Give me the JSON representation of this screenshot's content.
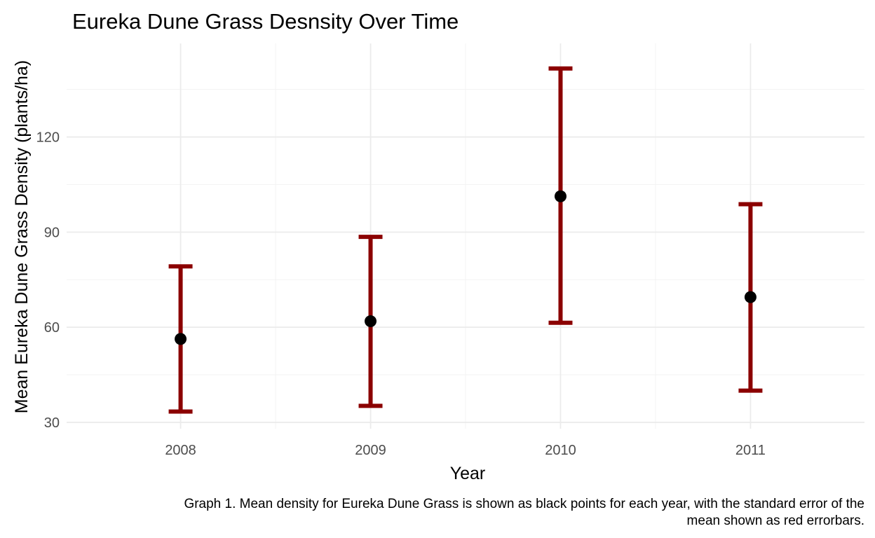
{
  "chart_data": {
    "type": "scatter",
    "title": "Eureka Dune Grass Desnsity Over Time",
    "xlabel": "Year",
    "ylabel": "Mean Eureka Dune Grass Density (plants/ha)",
    "categories": [
      "2008",
      "2009",
      "2010",
      "2011"
    ],
    "series": [
      {
        "values": [
          56.3,
          61.9,
          101.3,
          69.5
        ],
        "error_lower": [
          33.4,
          35.2,
          61.4,
          40.0
        ],
        "error_upper": [
          79.2,
          88.5,
          141.6,
          98.8
        ]
      }
    ],
    "ylim": [
      28,
      149.5
    ],
    "yticks": [
      30,
      60,
      90,
      120
    ],
    "grid": true,
    "point_color": "#000000",
    "errorbar_color": "#8b0000",
    "caption_lines": [
      "Graph 1. Mean density for Eureka Dune Grass is shown as black points for each year, with the standard error of the",
      "mean shown  as red errorbars."
    ]
  }
}
